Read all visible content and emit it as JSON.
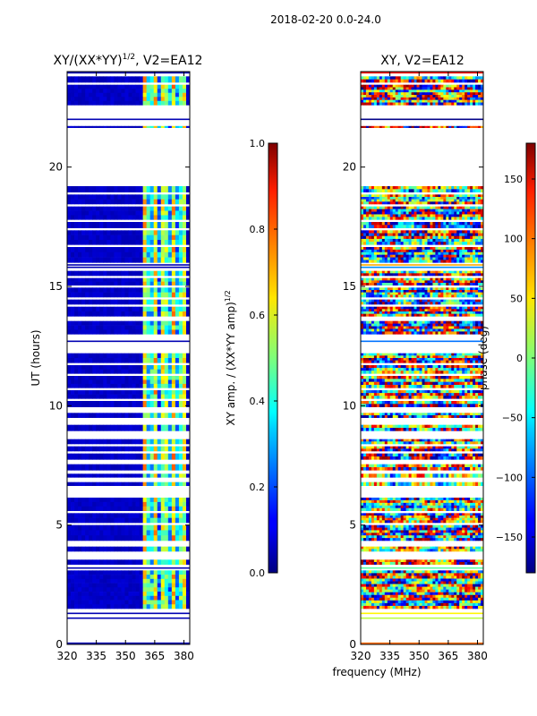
{
  "suptitle": "2018-02-20 0.0-24.0",
  "shared_xlabel": "frequency (MHz)",
  "colors": {
    "missing": "#ffffff",
    "frame": "#000000"
  },
  "chart_data": [
    {
      "type": "heatmap",
      "title_main": "XY/(XX*YY)",
      "title_sup": "1/2",
      "title_tail": ", V2=EA12",
      "ylabel": "UT (hours)",
      "xlim": [
        320,
        383
      ],
      "ylim": [
        0,
        24
      ],
      "x_ticks": [
        320,
        335,
        350,
        365,
        380
      ],
      "x_tick_labels": [
        "320",
        "335",
        "350",
        "365",
        "380"
      ],
      "y_ticks": [
        0,
        5,
        10,
        15,
        20
      ],
      "y_tick_labels": [
        "0",
        "5",
        "10",
        "15",
        "20"
      ],
      "colorbar": {
        "label_main": "XY amp. / (XX*YY amp)",
        "label_sup": "1/2",
        "range": [
          0.0,
          1.0
        ],
        "ticks": [
          0.0,
          0.2,
          0.4,
          0.6,
          0.8,
          1.0
        ],
        "tick_labels": [
          "0.0",
          "0.2",
          "0.4",
          "0.6",
          "0.8",
          "1.0"
        ]
      },
      "rfi_band_mhz": [
        359,
        381
      ],
      "typical_amplitude": 0.05,
      "rfi_amplitude": 0.4
    },
    {
      "type": "heatmap",
      "title_main": "XY, V2=EA12",
      "xlim": [
        320,
        383
      ],
      "ylim": [
        0,
        24
      ],
      "x_ticks": [
        320,
        335,
        350,
        365,
        380
      ],
      "x_tick_labels": [
        "320",
        "335",
        "350",
        "365",
        "380"
      ],
      "y_ticks": [
        0,
        5,
        10,
        15,
        20
      ],
      "y_tick_labels": [
        "0",
        "5",
        "10",
        "15",
        "20"
      ],
      "colorbar": {
        "label": "phase (deg)",
        "range": [
          -180,
          180
        ],
        "ticks": [
          -150,
          -100,
          -50,
          0,
          50,
          100,
          150
        ],
        "tick_labels": [
          "−150",
          "−100",
          "−50",
          "0",
          "50",
          "100",
          "150"
        ]
      }
    }
  ],
  "data_blocks_hours": [
    [
      1.5,
      3.1
    ],
    [
      3.35,
      3.55
    ],
    [
      3.9,
      4.1
    ],
    [
      4.35,
      5.0
    ],
    [
      5.1,
      5.5
    ],
    [
      5.6,
      6.15
    ],
    [
      6.65,
      6.8
    ],
    [
      7.0,
      7.15
    ],
    [
      7.3,
      7.55
    ],
    [
      7.75,
      8.0
    ],
    [
      8.1,
      8.3
    ],
    [
      8.4,
      8.6
    ],
    [
      8.95,
      9.2
    ],
    [
      9.5,
      9.7
    ],
    [
      9.95,
      10.2
    ],
    [
      10.3,
      10.65
    ],
    [
      10.75,
      11.25
    ],
    [
      11.35,
      11.7
    ],
    [
      11.8,
      12.2
    ],
    [
      13.0,
      13.55
    ],
    [
      13.75,
      14.15
    ],
    [
      14.25,
      14.45
    ],
    [
      14.55,
      14.95
    ],
    [
      15.05,
      15.35
    ],
    [
      15.45,
      15.65
    ],
    [
      16.0,
      16.65
    ],
    [
      16.75,
      17.35
    ],
    [
      17.45,
      17.7
    ],
    [
      17.8,
      18.35
    ],
    [
      18.45,
      18.85
    ],
    [
      18.95,
      19.2
    ],
    [
      22.6,
      23.45
    ],
    [
      23.55,
      23.8
    ],
    [
      21.65,
      21.72
    ]
  ],
  "thin_lines_hours": [
    0.05,
    1.1,
    1.3,
    3.2,
    12.7,
    15.8,
    15.9,
    22.0,
    23.95
  ]
}
